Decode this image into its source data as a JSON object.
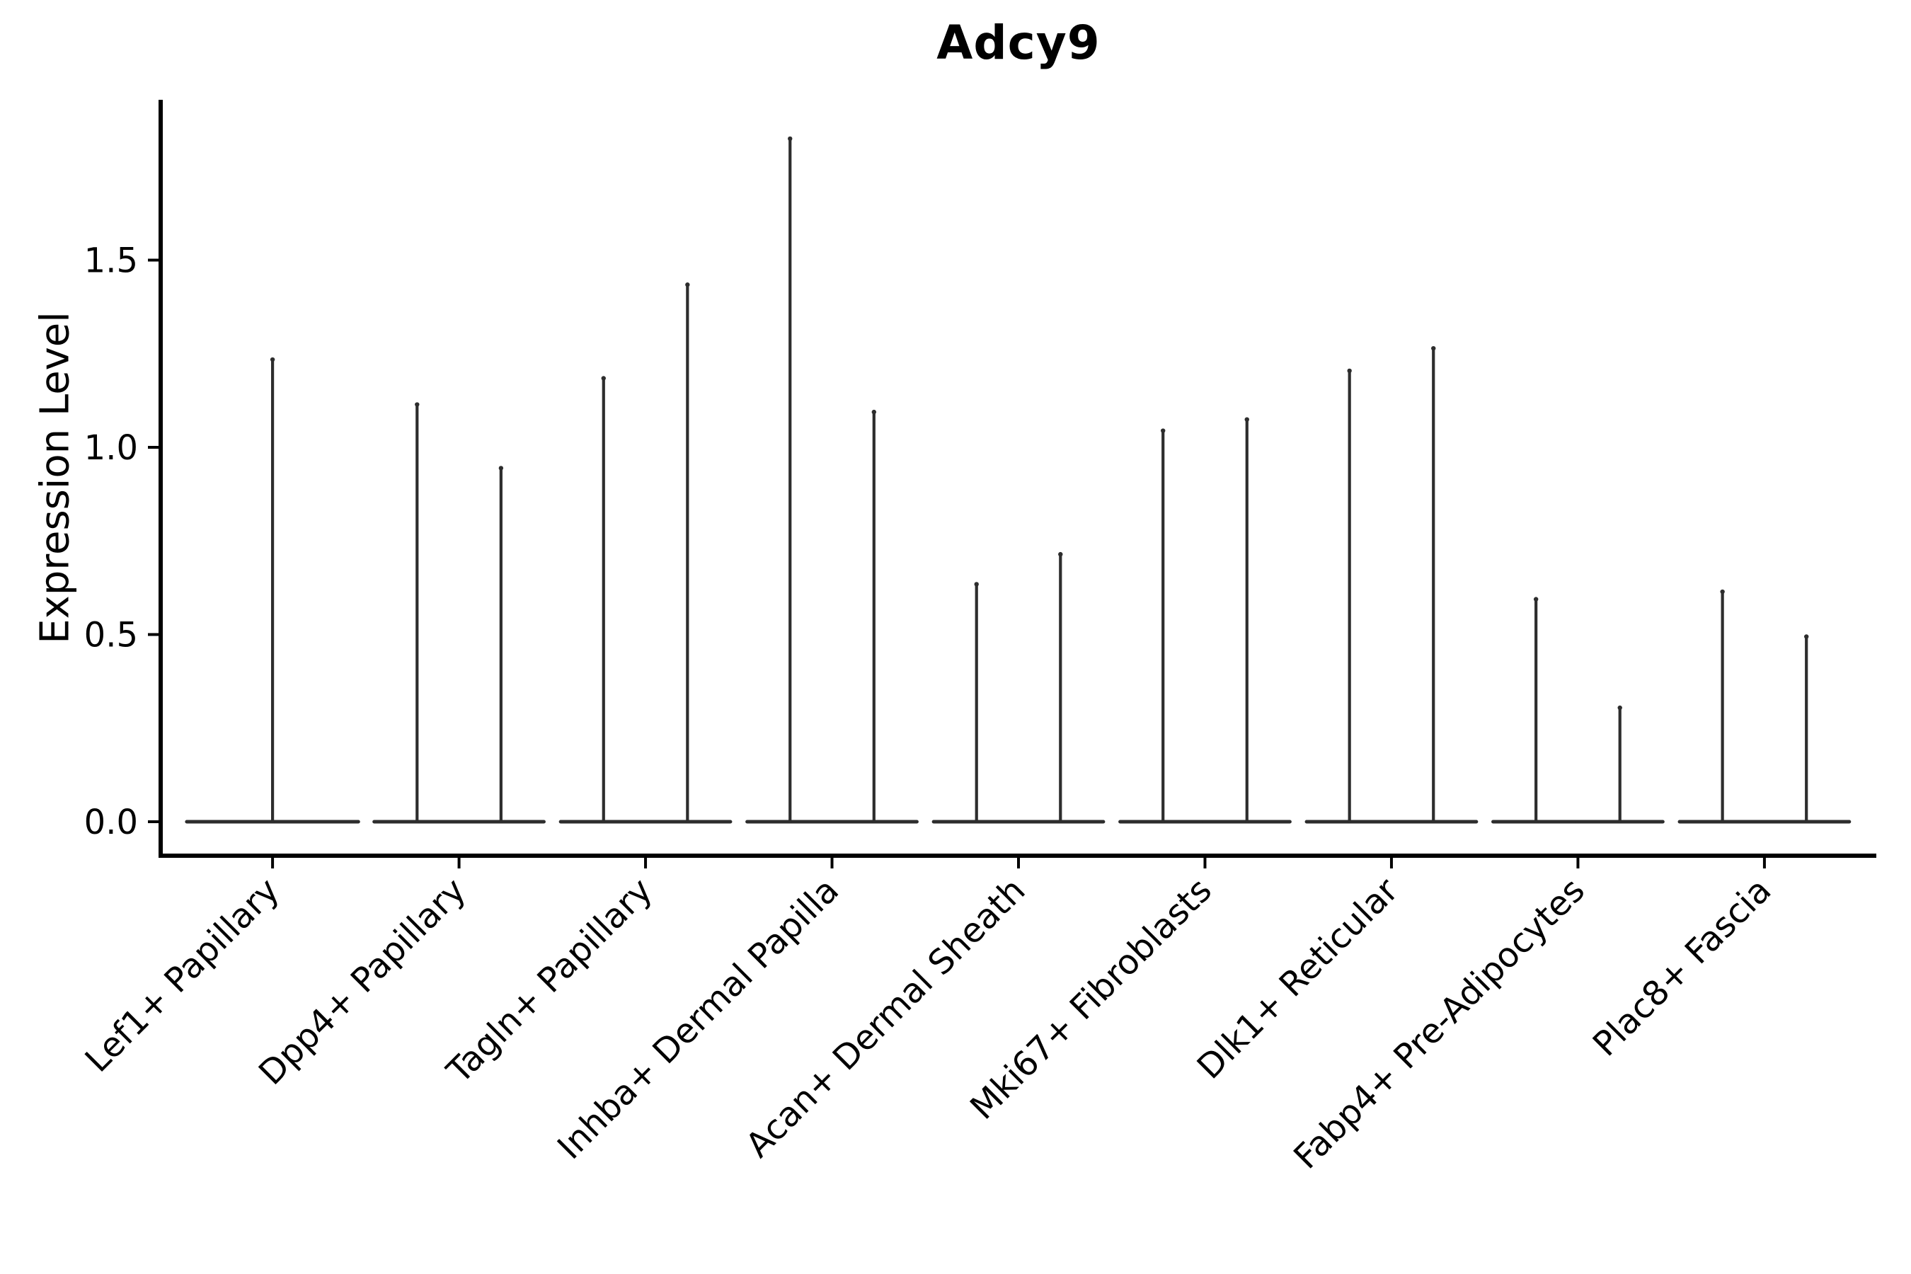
{
  "chart_data": {
    "type": "violin",
    "title": "Adcy9",
    "ylabel": "Expression Level",
    "xlabel": "",
    "ytick_labels": [
      "0.0",
      "0.5",
      "1.0",
      "1.5"
    ],
    "ytick_values": [
      0.0,
      0.5,
      1.0,
      1.5
    ],
    "ylim": [
      -0.09,
      1.93
    ],
    "xlim_category_units": [
      -0.6,
      8.6
    ],
    "grid": false,
    "legend": null,
    "categories": [
      "Lef1+ Papillary",
      "Dpp4+ Papillary",
      "Tagln+ Papillary",
      "Inhba+ Dermal Papilla",
      "Acan+ Dermal Sheath",
      "Mki67+ Fibroblasts",
      "Dlk1+ Reticular",
      "Fabp4+ Pre-Adipocytes",
      "Plac8+ Fascia"
    ],
    "description": "Violin plot of Adcy9 expression. Nearly all cells are at expression 0, so each violin collapses to a flat base at 0 with a hair-thin spike rising to the maximum expression value. Most cell types show two narrow violins side by side; the first shows one full-width violin.",
    "violins": [
      {
        "category_index": 0,
        "category": "Lef1+ Papillary",
        "spikes": [
          {
            "offset": 0.0,
            "max": 1.24,
            "half_width": 0.46
          }
        ]
      },
      {
        "category_index": 1,
        "category": "Dpp4+ Papillary",
        "spikes": [
          {
            "offset": -0.225,
            "max": 1.12,
            "half_width": 0.23
          },
          {
            "offset": 0.225,
            "max": 0.95,
            "half_width": 0.23
          }
        ]
      },
      {
        "category_index": 2,
        "category": "Tagln+ Papillary",
        "spikes": [
          {
            "offset": -0.225,
            "max": 1.19,
            "half_width": 0.23
          },
          {
            "offset": 0.225,
            "max": 1.44,
            "half_width": 0.23
          }
        ]
      },
      {
        "category_index": 3,
        "category": "Inhba+ Dermal Papilla",
        "spikes": [
          {
            "offset": -0.225,
            "max": 1.83,
            "half_width": 0.23
          },
          {
            "offset": 0.225,
            "max": 1.1,
            "half_width": 0.23
          }
        ]
      },
      {
        "category_index": 4,
        "category": "Acan+ Dermal Sheath",
        "spikes": [
          {
            "offset": -0.225,
            "max": 0.64,
            "half_width": 0.23
          },
          {
            "offset": 0.225,
            "max": 0.72,
            "half_width": 0.23
          }
        ]
      },
      {
        "category_index": 5,
        "category": "Mki67+ Fibroblasts",
        "spikes": [
          {
            "offset": -0.225,
            "max": 1.05,
            "half_width": 0.23
          },
          {
            "offset": 0.225,
            "max": 1.08,
            "half_width": 0.23
          }
        ]
      },
      {
        "category_index": 6,
        "category": "Dlk1+ Reticular",
        "spikes": [
          {
            "offset": -0.225,
            "max": 1.21,
            "half_width": 0.23
          },
          {
            "offset": 0.225,
            "max": 1.27,
            "half_width": 0.23
          }
        ]
      },
      {
        "category_index": 7,
        "category": "Fabp4+ Pre-Adipocytes",
        "spikes": [
          {
            "offset": -0.225,
            "max": 0.6,
            "half_width": 0.23
          },
          {
            "offset": 0.225,
            "max": 0.31,
            "half_width": 0.23
          }
        ]
      },
      {
        "category_index": 8,
        "category": "Plac8+ Fascia",
        "spikes": [
          {
            "offset": -0.225,
            "max": 0.62,
            "half_width": 0.23
          },
          {
            "offset": 0.225,
            "max": 0.5,
            "half_width": 0.23
          }
        ]
      }
    ],
    "colors": {
      "violin_stroke": "#2d2d2d",
      "axis": "#000000",
      "text": "#000000",
      "background": "#ffffff"
    }
  }
}
